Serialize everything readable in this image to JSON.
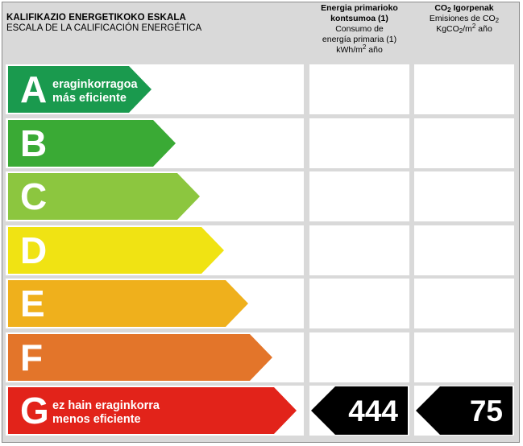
{
  "header": {
    "title_eu": "KALIFIKAZIO ENERGETIKOKO ESKALA",
    "title_es": "ESCALA DE LA CALIFICACIÓN ENERGÉTICA",
    "energy_col": {
      "line1": "Energia primarioko",
      "line2": "kontsumoa (1)",
      "line3": "Consumo de",
      "line4": "energía primaria (1)",
      "unit_a": "kWh/m",
      "unit_sup": "2",
      "unit_b": " año"
    },
    "co2_col": {
      "title_a": "CO",
      "title_sub": "2",
      "title_b": " Igorpenak",
      "line2_a": "Emisiones de CO",
      "line2_sub": "2",
      "unit_a": "KgCO",
      "unit_sub": "2",
      "unit_b": "/m",
      "unit_sup": "2",
      "unit_c": " año"
    }
  },
  "ratings": [
    {
      "letter": "A",
      "line1": "eraginkorragoa",
      "line2": "más eficiente",
      "color": "#1a9a4e"
    },
    {
      "letter": "B",
      "line1": "",
      "line2": "",
      "color": "#3aaa35"
    },
    {
      "letter": "C",
      "line1": "",
      "line2": "",
      "color": "#8cc63f"
    },
    {
      "letter": "D",
      "line1": "",
      "line2": "",
      "color": "#f0e313"
    },
    {
      "letter": "E",
      "line1": "",
      "line2": "",
      "color": "#efb01c"
    },
    {
      "letter": "F",
      "line1": "",
      "line2": "",
      "color": "#e3752a"
    },
    {
      "letter": "G",
      "line1": "ez hain eraginkorra",
      "line2": "menos eficiente",
      "color": "#e2231a"
    }
  ],
  "result": {
    "rating": "G",
    "energy_value": "444",
    "co2_value": "75",
    "indicator_color": "#000000"
  }
}
